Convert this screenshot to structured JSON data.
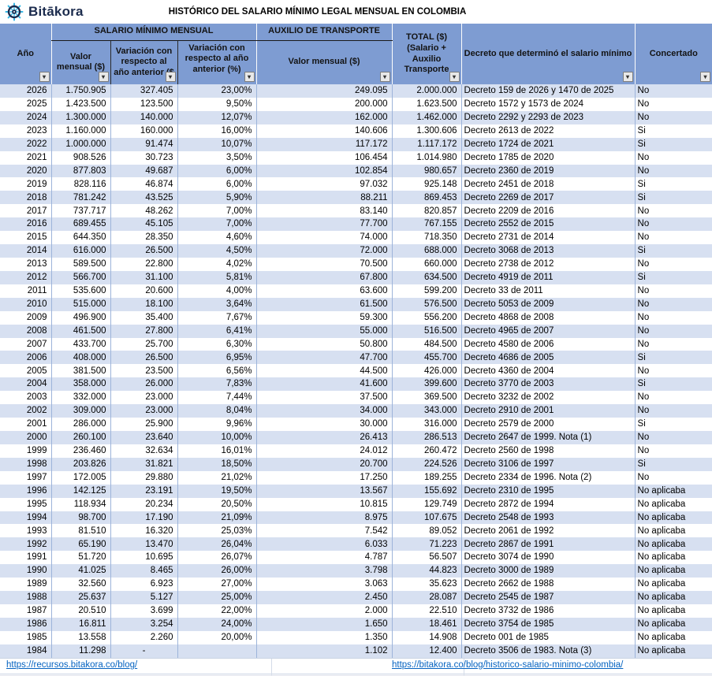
{
  "logo": {
    "text": "Bitākora",
    "icon": "ship-wheel"
  },
  "title": "HISTÓRICO DEL SALARIO MÍNIMO LEGAL MENSUAL EN COLOMBIA",
  "colors": {
    "header_bg": "#7E9CD2",
    "band_row_bg": "#D7E0F1",
    "plain_row_bg": "#FFFFFF",
    "grid_border": "#9DB4DA",
    "link": "#0563C1",
    "logo_navy": "#1B2B4D",
    "logo_cyan": "#35B6E4"
  },
  "table": {
    "headers": {
      "year": "Año",
      "group_salary": "SALARIO MÍNIMO MENSUAL",
      "group_transport": "AUXILIO DE TRANSPORTE",
      "salary_value": "Valor mensual ($)",
      "salary_var_abs": "Variación con respecto al año anterior ($",
      "salary_var_pct": "Variación con respecto al año anterior (%)",
      "transport_value": "Valor mensual ($)",
      "total": "TOTAL ($) (Salario + Auxilio Transporte",
      "decree": "Decreto que determinó el salario mínimo",
      "agreed": "Concertado"
    },
    "rows": [
      [
        "2026",
        "1.750.905",
        "327.405",
        "23,00%",
        "249.095",
        "2.000.000",
        "Decreto 159 de 2026 y 1470 de 2025",
        "No"
      ],
      [
        "2025",
        "1.423.500",
        "123.500",
        "9,50%",
        "200.000",
        "1.623.500",
        "Decreto 1572 y 1573 de 2024",
        "No"
      ],
      [
        "2024",
        "1.300.000",
        "140.000",
        "12,07%",
        "162.000",
        "1.462.000",
        "Decreto 2292 y 2293 de 2023",
        "No"
      ],
      [
        "2023",
        "1.160.000",
        "160.000",
        "16,00%",
        "140.606",
        "1.300.606",
        "Decreto 2613 de 2022",
        "Si"
      ],
      [
        "2022",
        "1.000.000",
        "91.474",
        "10,07%",
        "117.172",
        "1.117.172",
        "Decreto 1724 de 2021",
        "Si"
      ],
      [
        "2021",
        "908.526",
        "30.723",
        "3,50%",
        "106.454",
        "1.014.980",
        "Decreto 1785 de 2020",
        "No"
      ],
      [
        "2020",
        "877.803",
        "49.687",
        "6,00%",
        "102.854",
        "980.657",
        "Decreto 2360 de 2019",
        "No"
      ],
      [
        "2019",
        "828.116",
        "46.874",
        "6,00%",
        "97.032",
        "925.148",
        "Decreto 2451 de 2018",
        "Si"
      ],
      [
        "2018",
        "781.242",
        "43.525",
        "5,90%",
        "88.211",
        "869.453",
        "Decreto 2269 de 2017",
        "Si"
      ],
      [
        "2017",
        "737.717",
        "48.262",
        "7,00%",
        "83.140",
        "820.857",
        "Decreto 2209 de 2016",
        "No"
      ],
      [
        "2016",
        "689.455",
        "45.105",
        "7,00%",
        "77.700",
        "767.155",
        "Decreto 2552 de 2015",
        "No"
      ],
      [
        "2015",
        "644.350",
        "28.350",
        "4,60%",
        "74.000",
        "718.350",
        "Decreto 2731 de 2014",
        "No"
      ],
      [
        "2014",
        "616.000",
        "26.500",
        "4,50%",
        "72.000",
        "688.000",
        "Decreto 3068 de 2013",
        "Si"
      ],
      [
        "2013",
        "589.500",
        "22.800",
        "4,02%",
        "70.500",
        "660.000",
        "Decreto 2738 de 2012",
        "No"
      ],
      [
        "2012",
        "566.700",
        "31.100",
        "5,81%",
        "67.800",
        "634.500",
        "Decreto 4919 de 2011",
        "Si"
      ],
      [
        "2011",
        "535.600",
        "20.600",
        "4,00%",
        "63.600",
        "599.200",
        "Decreto 33 de 2011",
        "No"
      ],
      [
        "2010",
        "515.000",
        "18.100",
        "3,64%",
        "61.500",
        "576.500",
        "Decreto 5053 de 2009",
        "No"
      ],
      [
        "2009",
        "496.900",
        "35.400",
        "7,67%",
        "59.300",
        "556.200",
        "Decreto 4868 de 2008",
        "No"
      ],
      [
        "2008",
        "461.500",
        "27.800",
        "6,41%",
        "55.000",
        "516.500",
        "Decreto 4965 de 2007",
        "No"
      ],
      [
        "2007",
        "433.700",
        "25.700",
        "6,30%",
        "50.800",
        "484.500",
        "Decreto 4580 de 2006",
        "No"
      ],
      [
        "2006",
        "408.000",
        "26.500",
        "6,95%",
        "47.700",
        "455.700",
        "Decreto 4686 de 2005",
        "Si"
      ],
      [
        "2005",
        "381.500",
        "23.500",
        "6,56%",
        "44.500",
        "426.000",
        "Decreto 4360 de 2004",
        "No"
      ],
      [
        "2004",
        "358.000",
        "26.000",
        "7,83%",
        "41.600",
        "399.600",
        "Decreto 3770 de 2003",
        "Si"
      ],
      [
        "2003",
        "332.000",
        "23.000",
        "7,44%",
        "37.500",
        "369.500",
        "Decreto 3232 de 2002",
        "No"
      ],
      [
        "2002",
        "309.000",
        "23.000",
        "8,04%",
        "34.000",
        "343.000",
        "Decreto 2910 de 2001",
        "No"
      ],
      [
        "2001",
        "286.000",
        "25.900",
        "9,96%",
        "30.000",
        "316.000",
        "Decreto 2579 de 2000",
        "Si"
      ],
      [
        "2000",
        "260.100",
        "23.640",
        "10,00%",
        "26.413",
        "286.513",
        "Decreto 2647 de 1999. Nota (1)",
        "No"
      ],
      [
        "1999",
        "236.460",
        "32.634",
        "16,01%",
        "24.012",
        "260.472",
        "Decreto 2560 de 1998",
        "No"
      ],
      [
        "1998",
        "203.826",
        "31.821",
        "18,50%",
        "20.700",
        "224.526",
        "Decreto 3106 de 1997",
        "Si"
      ],
      [
        "1997",
        "172.005",
        "29.880",
        "21,02%",
        "17.250",
        "189.255",
        "Decreto 2334 de 1996. Nota (2)",
        "No"
      ],
      [
        "1996",
        "142.125",
        "23.191",
        "19,50%",
        "13.567",
        "155.692",
        "Decreto 2310 de 1995",
        "No aplicaba"
      ],
      [
        "1995",
        "118.934",
        "20.234",
        "20,50%",
        "10.815",
        "129.749",
        "Decreto 2872 de 1994",
        "No aplicaba"
      ],
      [
        "1994",
        "98.700",
        "17.190",
        "21,09%",
        "8.975",
        "107.675",
        "Decreto 2548 de 1993",
        "No aplicaba"
      ],
      [
        "1993",
        "81.510",
        "16.320",
        "25,03%",
        "7.542",
        "89.052",
        "Decreto 2061 de 1992",
        "No aplicaba"
      ],
      [
        "1992",
        "65.190",
        "13.470",
        "26,04%",
        "6.033",
        "71.223",
        "Decreto 2867 de 1991",
        "No aplicaba"
      ],
      [
        "1991",
        "51.720",
        "10.695",
        "26,07%",
        "4.787",
        "56.507",
        "Decreto 3074 de 1990",
        "No aplicaba"
      ],
      [
        "1990",
        "41.025",
        "8.465",
        "26,00%",
        "3.798",
        "44.823",
        "Decreto 3000 de 1989",
        "No aplicaba"
      ],
      [
        "1989",
        "32.560",
        "6.923",
        "27,00%",
        "3.063",
        "35.623",
        "Decreto 2662 de 1988",
        "No aplicaba"
      ],
      [
        "1988",
        "25.637",
        "5.127",
        "25,00%",
        "2.450",
        "28.087",
        "Decreto 2545 de 1987",
        "No aplicaba"
      ],
      [
        "1987",
        "20.510",
        "3.699",
        "22,00%",
        "2.000",
        "22.510",
        "Decreto 3732 de 1986",
        "No aplicaba"
      ],
      [
        "1986",
        "16.811",
        "3.254",
        "24,00%",
        "1.650",
        "18.461",
        "Decreto 3754 de 1985",
        "No aplicaba"
      ],
      [
        "1985",
        "13.558",
        "2.260",
        "20,00%",
        "1.350",
        "14.908",
        "Decreto 001 de 1985",
        "No aplicaba"
      ],
      [
        "1984",
        "11.298",
        "-",
        "",
        "1.102",
        "12.400",
        "Decreto 3506 de 1983. Nota (3)",
        "No aplicaba"
      ]
    ]
  },
  "footer": {
    "left_link": "https://recursos.bitakora.co/blog/",
    "right_link": "https://bitakora.co/blog/historico-salario-minimo-colombia/"
  },
  "filter_icon_glyph": "▾"
}
